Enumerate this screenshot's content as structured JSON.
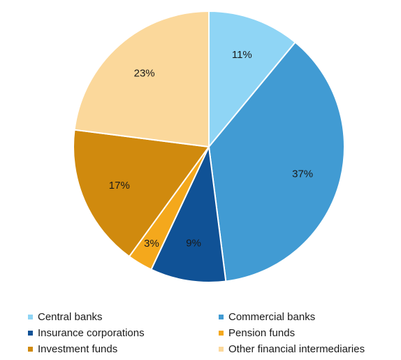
{
  "chart_data": {
    "type": "pie",
    "categories": [
      "Central banks",
      "Commercial banks",
      "Insurance corporations",
      "Pension funds",
      "Investment funds",
      "Other financial intermediaries"
    ],
    "values": [
      11,
      37,
      9,
      3,
      17,
      23
    ],
    "value_labels": [
      "11%",
      "37%",
      "9%",
      "3%",
      "17%",
      "23%"
    ],
    "colors": [
      "#8fd5f5",
      "#419bd3",
      "#105296",
      "#f4a81c",
      "#d08a0e",
      "#fbd89b"
    ],
    "legend_placement": "bottom",
    "start_angle": "top",
    "direction": "clockwise"
  }
}
